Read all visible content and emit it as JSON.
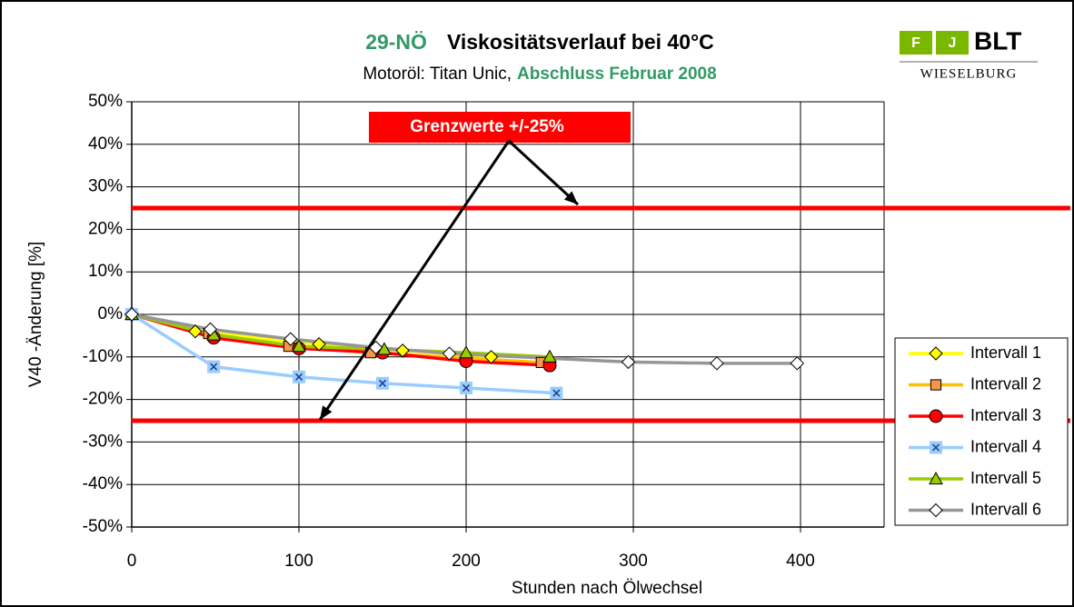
{
  "chart_data": {
    "type": "line",
    "title_prefix": "29-NÖ",
    "title": "Viskositätsverlauf bei 40°C",
    "subtitle": "Motoröl: Titan Unic,",
    "subtitle_highlight": "Abschluss Februar 2008",
    "logo": {
      "letters": [
        "F",
        "J"
      ],
      "name": "BLT",
      "place": "WIESELBURG"
    },
    "xlabel": "Stunden nach Ölwechsel",
    "ylabel": "V40 -Änderung [%]",
    "xlim": [
      0,
      450
    ],
    "xticks": [
      0,
      100,
      200,
      300,
      400
    ],
    "ylim": [
      -50,
      50
    ],
    "yticks": [
      {
        "value": -50,
        "label": "-50%"
      },
      {
        "value": -40,
        "label": "-40%"
      },
      {
        "value": -30,
        "label": "-30%"
      },
      {
        "value": -20,
        "label": "-20%"
      },
      {
        "value": -10,
        "label": "-10%"
      },
      {
        "value": 0,
        "label": "0%"
      },
      {
        "value": 10,
        "label": "10%"
      },
      {
        "value": 20,
        "label": "20%"
      },
      {
        "value": 30,
        "label": "30%"
      },
      {
        "value": 40,
        "label": "40%"
      },
      {
        "value": 50,
        "label": "50%"
      }
    ],
    "grid": true,
    "legend": "right",
    "limits": {
      "label": "Grenzwerte +/-25%",
      "values": [
        25,
        -25
      ],
      "color": "#ff0000"
    },
    "series": [
      {
        "name": "Intervall 1",
        "color": "#ffff00",
        "marker_fill": "#ffff00",
        "marker": "diamond",
        "x": [
          0,
          38,
          112,
          162,
          215
        ],
        "values": [
          0,
          -4,
          -7,
          -8.5,
          -10
        ]
      },
      {
        "name": "Intervall 2",
        "color": "#ffc000",
        "marker_fill": "#f79646",
        "marker": "square",
        "x": [
          0,
          46,
          94,
          143,
          245
        ],
        "values": [
          0,
          -4.5,
          -7.5,
          -9,
          -11.3
        ]
      },
      {
        "name": "Intervall 3",
        "color": "#ff0000",
        "marker_fill": "#ff0000",
        "marker": "circle",
        "x": [
          0,
          49,
          100,
          150,
          200,
          250
        ],
        "values": [
          0,
          -5.5,
          -8,
          -9,
          -11,
          -12
        ]
      },
      {
        "name": "Intervall 4",
        "color": "#99ccff",
        "marker_fill": "#99ccff",
        "marker": "x",
        "x": [
          0,
          49,
          100,
          150,
          200,
          254
        ],
        "values": [
          0,
          -12.3,
          -14.7,
          -16.2,
          -17.3,
          -18.5
        ]
      },
      {
        "name": "Intervall 5",
        "color": "#99cc00",
        "marker_fill": "#99cc00",
        "marker": "triangle",
        "x": [
          0,
          49,
          100,
          151,
          200,
          250
        ],
        "values": [
          0,
          -4.8,
          -7.5,
          -8.2,
          -9,
          -10
        ]
      },
      {
        "name": "Intervall 6",
        "color": "#969696",
        "marker_fill": "#ffffff",
        "marker": "diamond",
        "x": [
          0,
          47,
          95,
          146,
          190,
          297,
          350,
          398
        ],
        "values": [
          0,
          -3.5,
          -5.8,
          -7.8,
          -9.2,
          -11.2,
          -11.5,
          -11.5
        ]
      }
    ]
  }
}
